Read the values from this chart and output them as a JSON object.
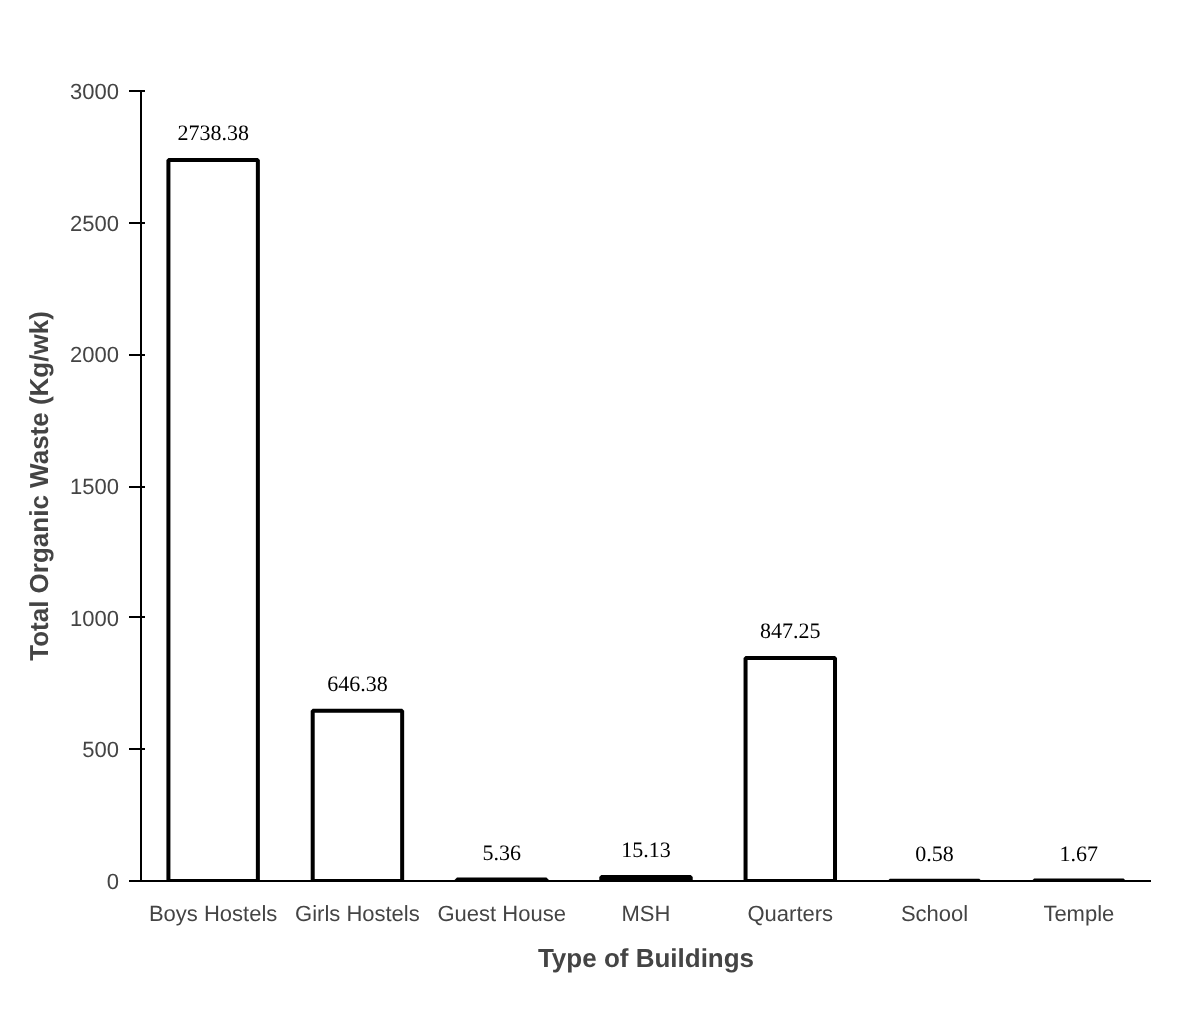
{
  "chart_data": {
    "type": "bar",
    "xlabel": "Type of Buildings",
    "ylabel": "Total Organic Waste (Kg/wk)",
    "categories": [
      "Boys Hostels",
      "Girls Hostels",
      "Guest House",
      "MSH",
      "Quarters",
      "School",
      "Temple"
    ],
    "values": [
      2738.38,
      646.38,
      5.36,
      15.13,
      847.25,
      0.58,
      1.67
    ],
    "color": "#ffffff",
    "ylim": [
      0,
      3000
    ],
    "yticks": [
      0,
      500,
      1000,
      1500,
      2000,
      2500,
      3000
    ],
    "grid": false,
    "data_labels": true
  }
}
